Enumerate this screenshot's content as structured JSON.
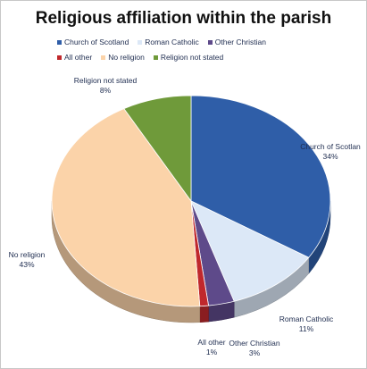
{
  "chart_data": {
    "type": "pie",
    "title": "Religious affiliation within the parish",
    "legend_position": "top",
    "slices": [
      {
        "label": "Church of Scotland",
        "display_label": "Church of Scotlan",
        "value": 34,
        "value_label": "34%",
        "color": "#2f5ea8"
      },
      {
        "label": "Roman Catholic",
        "display_label": "Roman Catholic",
        "value": 11,
        "value_label": "11%",
        "color": "#dce8f7"
      },
      {
        "label": "Other Christian",
        "display_label": "Other Christian",
        "value": 3,
        "value_label": "3%",
        "color": "#5e4a8a"
      },
      {
        "label": "All other",
        "display_label": "All other",
        "value": 1,
        "value_label": "1%",
        "color": "#c0282c"
      },
      {
        "label": "No religion",
        "display_label": "No religion",
        "value": 43,
        "value_label": "43%",
        "color": "#fbd3a9"
      },
      {
        "label": "Religion not stated",
        "display_label": "Religion not stated",
        "value": 8,
        "value_label": "8%",
        "color": "#6f9a3a"
      }
    ]
  }
}
